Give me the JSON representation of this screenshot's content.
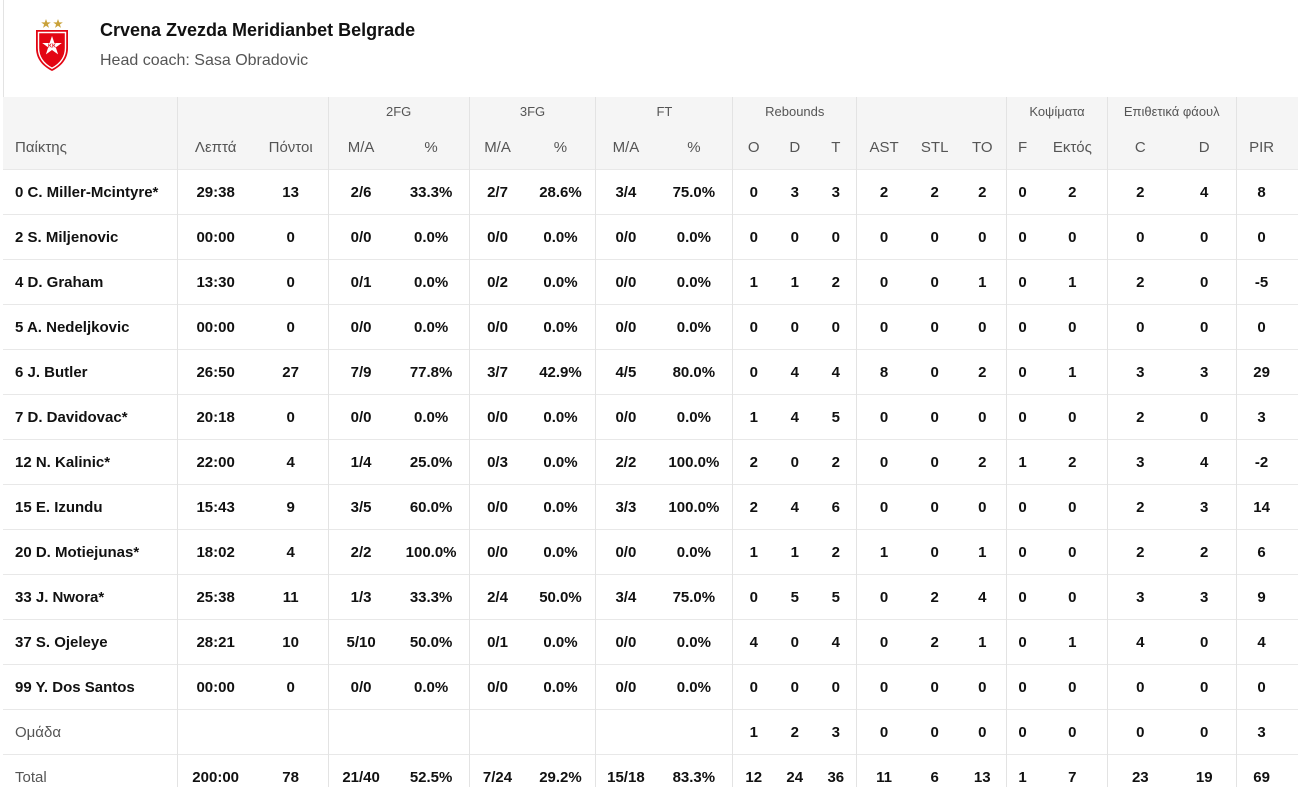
{
  "team": {
    "name": "Crvena Zvezda Meridianbet Belgrade",
    "coach": "Head coach: Sasa Obradovic",
    "logo_text": "KK",
    "colors": {
      "red": "#e30613",
      "gold": "#c9a23a",
      "white": "#ffffff"
    }
  },
  "groups": {
    "fg2": "2FG",
    "fg3": "3FG",
    "ft": "FT",
    "rebounds": "Rebounds",
    "blocks": "Κοψίματα",
    "fouls": "Επιθετικά φάουλ"
  },
  "headers": [
    "Παίκτης",
    "Λεπτά",
    "Πόντοι",
    "M/A",
    "%",
    "M/A",
    "%",
    "M/A",
    "%",
    "O",
    "D",
    "T",
    "AST",
    "STL",
    "TO",
    "F",
    "Εκτός",
    "C",
    "D",
    "PIR",
    "+/-"
  ],
  "players": [
    [
      "0 C. Miller-Mcintyre*",
      "29:38",
      "13",
      "2/6",
      "33.3%",
      "2/7",
      "28.6%",
      "3/4",
      "75.0%",
      "0",
      "3",
      "3",
      "2",
      "2",
      "2",
      "0",
      "2",
      "2",
      "4",
      "8",
      ""
    ],
    [
      "2 S. Miljenovic",
      "00:00",
      "0",
      "0/0",
      "0.0%",
      "0/0",
      "0.0%",
      "0/0",
      "0.0%",
      "0",
      "0",
      "0",
      "0",
      "0",
      "0",
      "0",
      "0",
      "0",
      "0",
      "0",
      ""
    ],
    [
      "4 D. Graham",
      "13:30",
      "0",
      "0/1",
      "0.0%",
      "0/2",
      "0.0%",
      "0/0",
      "0.0%",
      "1",
      "1",
      "2",
      "0",
      "0",
      "1",
      "0",
      "1",
      "2",
      "0",
      "-5",
      ""
    ],
    [
      "5 A. Nedeljkovic",
      "00:00",
      "0",
      "0/0",
      "0.0%",
      "0/0",
      "0.0%",
      "0/0",
      "0.0%",
      "0",
      "0",
      "0",
      "0",
      "0",
      "0",
      "0",
      "0",
      "0",
      "0",
      "0",
      ""
    ],
    [
      "6 J. Butler",
      "26:50",
      "27",
      "7/9",
      "77.8%",
      "3/7",
      "42.9%",
      "4/5",
      "80.0%",
      "0",
      "4",
      "4",
      "8",
      "0",
      "2",
      "0",
      "1",
      "3",
      "3",
      "29",
      ""
    ],
    [
      "7 D. Davidovac*",
      "20:18",
      "0",
      "0/0",
      "0.0%",
      "0/0",
      "0.0%",
      "0/0",
      "0.0%",
      "1",
      "4",
      "5",
      "0",
      "0",
      "0",
      "0",
      "0",
      "2",
      "0",
      "3",
      ""
    ],
    [
      "12 N. Kalinic*",
      "22:00",
      "4",
      "1/4",
      "25.0%",
      "0/3",
      "0.0%",
      "2/2",
      "100.0%",
      "2",
      "0",
      "2",
      "0",
      "0",
      "2",
      "1",
      "2",
      "3",
      "4",
      "-2",
      ""
    ],
    [
      "15 E. Izundu",
      "15:43",
      "9",
      "3/5",
      "60.0%",
      "0/0",
      "0.0%",
      "3/3",
      "100.0%",
      "2",
      "4",
      "6",
      "0",
      "0",
      "0",
      "0",
      "0",
      "2",
      "3",
      "14",
      ""
    ],
    [
      "20 D. Motiejunas*",
      "18:02",
      "4",
      "2/2",
      "100.0%",
      "0/0",
      "0.0%",
      "0/0",
      "0.0%",
      "1",
      "1",
      "2",
      "1",
      "0",
      "1",
      "0",
      "0",
      "2",
      "2",
      "6",
      ""
    ],
    [
      "33 J. Nwora*",
      "25:38",
      "11",
      "1/3",
      "33.3%",
      "2/4",
      "50.0%",
      "3/4",
      "75.0%",
      "0",
      "5",
      "5",
      "0",
      "2",
      "4",
      "0",
      "0",
      "3",
      "3",
      "9",
      ""
    ],
    [
      "37 S. Ojeleye",
      "28:21",
      "10",
      "5/10",
      "50.0%",
      "0/1",
      "0.0%",
      "0/0",
      "0.0%",
      "4",
      "0",
      "4",
      "0",
      "2",
      "1",
      "0",
      "1",
      "4",
      "0",
      "4",
      ""
    ],
    [
      "99 Y. Dos Santos",
      "00:00",
      "0",
      "0/0",
      "0.0%",
      "0/0",
      "0.0%",
      "0/0",
      "0.0%",
      "0",
      "0",
      "0",
      "0",
      "0",
      "0",
      "0",
      "0",
      "0",
      "0",
      "0",
      ""
    ]
  ],
  "team_row": [
    "Ομάδα",
    "",
    "",
    "",
    "",
    "",
    "",
    "",
    "",
    "1",
    "2",
    "3",
    "0",
    "0",
    "0",
    "0",
    "0",
    "0",
    "0",
    "3",
    ""
  ],
  "total_row": [
    "Total",
    "200:00",
    "78",
    "21/40",
    "52.5%",
    "7/24",
    "29.2%",
    "15/18",
    "83.3%",
    "12",
    "24",
    "36",
    "11",
    "6",
    "13",
    "1",
    "7",
    "23",
    "19",
    "69",
    ""
  ]
}
